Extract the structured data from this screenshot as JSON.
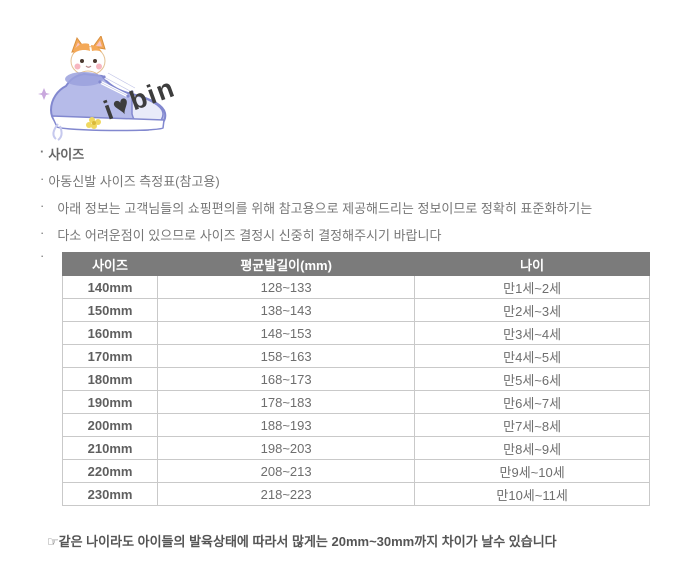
{
  "logo": {
    "text": "i♥bin"
  },
  "bullet_char": "·",
  "notes": [
    "사이즈",
    "아동신발 사이즈 측정표(참고용)",
    "아래 정보는 고객님들의 쇼핑편의를 위해 참고용으로 제공해드리는 정보이므로 정확히 표준화하기는",
    "다소 어려운점이 있으므로 사이즈 결정시 신중히 결정해주시기 바랍니다"
  ],
  "table": {
    "headers": [
      "사이즈",
      "평균발길이(mm)",
      "나이"
    ],
    "rows": [
      [
        "140mm",
        "128~133",
        "만1세~2세"
      ],
      [
        "150mm",
        "138~143",
        "만2세~3세"
      ],
      [
        "160mm",
        "148~153",
        "만3세~4세"
      ],
      [
        "170mm",
        "158~163",
        "만4세~5세"
      ],
      [
        "180mm",
        "168~173",
        "만5세~6세"
      ],
      [
        "190mm",
        "178~183",
        "만6세~7세"
      ],
      [
        "200mm",
        "188~193",
        "만7세~8세"
      ],
      [
        "210mm",
        "198~203",
        "만8세~9세"
      ],
      [
        "220mm",
        "208~213",
        "만9세~10세"
      ],
      [
        "230mm",
        "218~223",
        "만10세~11세"
      ]
    ]
  },
  "footer": "☞같은 나이라도 아이들의 발육상태에 따라서 많게는 20mm~30mm까지 차이가 날수 있습니다",
  "colors": {
    "header_bg": "#7b7b7b",
    "header_text": "#ffffff",
    "body_text": "#707070",
    "border": "#c9c9c9",
    "shoe_fill": "#b6bbe9",
    "shoe_outline": "#8288cf",
    "cat_orange": "#f4a958",
    "logo_text_color": "#3d3d3d"
  }
}
